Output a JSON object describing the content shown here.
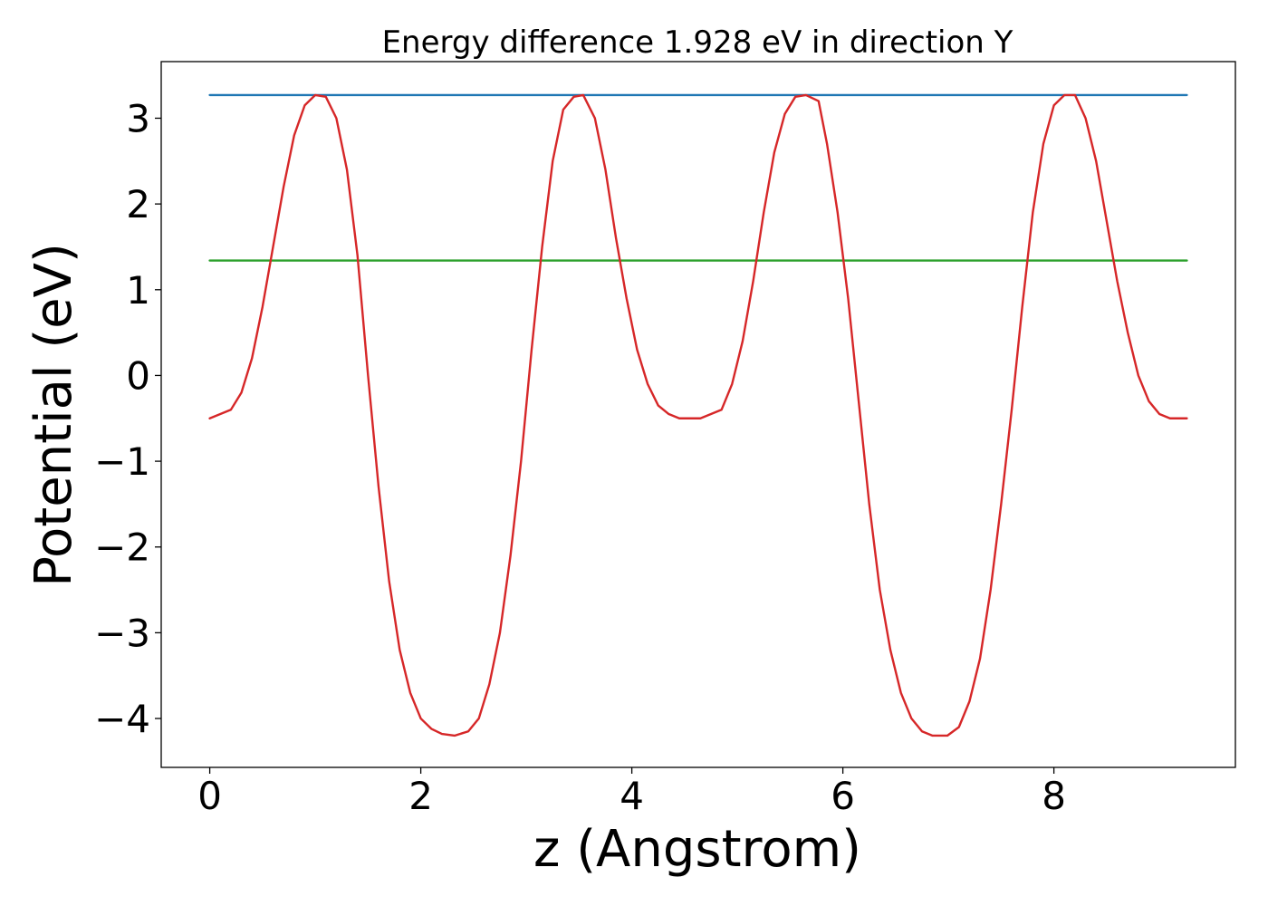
{
  "chart_data": {
    "type": "line",
    "title": "Energy difference 1.928 eV in direction Y",
    "xlabel": "z (Angstrom)",
    "ylabel": "Potential (eV)",
    "xlim": [
      -0.46,
      9.72
    ],
    "ylim": [
      -4.57,
      3.66
    ],
    "xticks": [
      0,
      2,
      4,
      6,
      8
    ],
    "yticks": [
      -4,
      -3,
      -2,
      -1,
      0,
      1,
      2,
      3
    ],
    "ytick_labels": [
      "−4",
      "−3",
      "−2",
      "−1",
      "0",
      "1",
      "2",
      "3"
    ],
    "grid": false,
    "series": [
      {
        "color": "#1f77b4",
        "x": [
          0,
          9.26
        ],
        "y": [
          3.27,
          3.27
        ]
      },
      {
        "color": "#2ca02c",
        "x": [
          0,
          9.26
        ],
        "y": [
          1.34,
          1.34
        ]
      },
      {
        "color": "#d62728",
        "x": [
          0.0,
          0.2,
          0.3,
          0.4,
          0.5,
          0.6,
          0.7,
          0.8,
          0.9,
          1.0,
          1.1,
          1.2,
          1.3,
          1.4,
          1.5,
          1.6,
          1.7,
          1.8,
          1.9,
          2.0,
          2.1,
          2.2,
          2.32,
          2.45,
          2.55,
          2.65,
          2.75,
          2.85,
          2.95,
          3.05,
          3.15,
          3.25,
          3.35,
          3.45,
          3.54,
          3.65,
          3.75,
          3.85,
          3.95,
          4.05,
          4.15,
          4.25,
          4.35,
          4.45,
          4.65,
          4.85,
          4.95,
          5.05,
          5.15,
          5.25,
          5.35,
          5.45,
          5.55,
          5.65,
          5.77,
          5.85,
          5.95,
          6.05,
          6.15,
          6.25,
          6.35,
          6.45,
          6.55,
          6.65,
          6.75,
          6.85,
          6.99,
          7.1,
          7.2,
          7.3,
          7.4,
          7.5,
          7.6,
          7.7,
          7.8,
          7.9,
          8.0,
          8.1,
          8.2,
          8.3,
          8.4,
          8.5,
          8.6,
          8.7,
          8.8,
          8.9,
          9.0,
          9.1,
          9.26
        ],
        "y": [
          -0.5,
          -0.4,
          -0.2,
          0.2,
          0.8,
          1.5,
          2.2,
          2.8,
          3.15,
          3.27,
          3.25,
          3.0,
          2.4,
          1.4,
          0.0,
          -1.3,
          -2.4,
          -3.2,
          -3.7,
          -4.0,
          -4.12,
          -4.18,
          -4.2,
          -4.15,
          -4.0,
          -3.6,
          -3.0,
          -2.1,
          -1.0,
          0.3,
          1.5,
          2.5,
          3.1,
          3.25,
          3.27,
          3.0,
          2.4,
          1.6,
          0.9,
          0.3,
          -0.1,
          -0.35,
          -0.45,
          -0.5,
          -0.5,
          -0.4,
          -0.1,
          0.4,
          1.1,
          1.9,
          2.6,
          3.05,
          3.25,
          3.27,
          3.2,
          2.7,
          1.9,
          0.9,
          -0.3,
          -1.5,
          -2.5,
          -3.2,
          -3.7,
          -4.0,
          -4.15,
          -4.2,
          -4.2,
          -4.1,
          -3.8,
          -3.3,
          -2.5,
          -1.5,
          -0.4,
          0.8,
          1.9,
          2.7,
          3.15,
          3.27,
          3.27,
          3.0,
          2.5,
          1.8,
          1.1,
          0.5,
          0.0,
          -0.3,
          -0.45,
          -0.5,
          -0.5
        ]
      }
    ]
  }
}
